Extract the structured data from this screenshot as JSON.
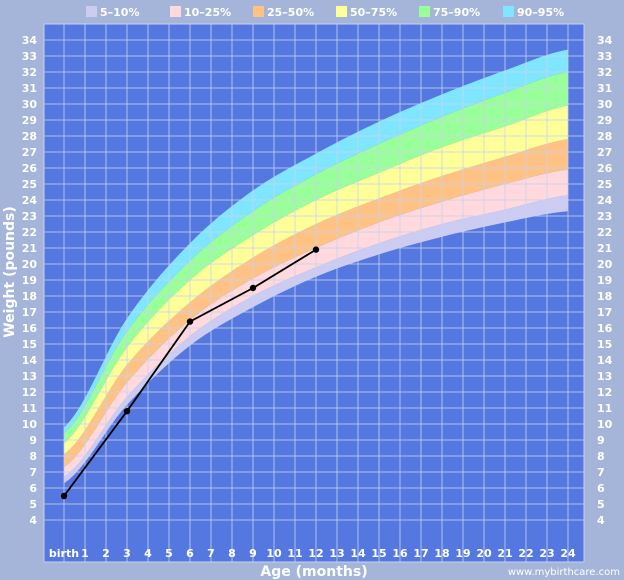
{
  "chart_data": {
    "type": "area",
    "xlabel": "Age (months)",
    "ylabel": "Weight (pounds)",
    "xlim": [
      0,
      24
    ],
    "ylim": [
      4,
      34
    ],
    "x_ticks": [
      {
        "value": 0,
        "label": "birth"
      },
      {
        "value": 1,
        "label": "1"
      },
      {
        "value": 2,
        "label": "2"
      },
      {
        "value": 3,
        "label": "3"
      },
      {
        "value": 4,
        "label": "4"
      },
      {
        "value": 5,
        "label": "5"
      },
      {
        "value": 6,
        "label": "6"
      },
      {
        "value": 7,
        "label": "7"
      },
      {
        "value": 8,
        "label": "8"
      },
      {
        "value": 9,
        "label": "9"
      },
      {
        "value": 10,
        "label": "10"
      },
      {
        "value": 11,
        "label": "11"
      },
      {
        "value": 12,
        "label": "12"
      },
      {
        "value": 13,
        "label": "13"
      },
      {
        "value": 14,
        "label": "14"
      },
      {
        "value": 15,
        "label": "15"
      },
      {
        "value": 16,
        "label": "16"
      },
      {
        "value": 17,
        "label": "17"
      },
      {
        "value": 18,
        "label": "18"
      },
      {
        "value": 19,
        "label": "19"
      },
      {
        "value": 20,
        "label": "20"
      },
      {
        "value": 21,
        "label": "21"
      },
      {
        "value": 22,
        "label": "22"
      },
      {
        "value": 23,
        "label": "23"
      },
      {
        "value": 24,
        "label": "24"
      }
    ],
    "y_ticks": [
      4,
      5,
      6,
      7,
      8,
      9,
      10,
      11,
      12,
      13,
      14,
      15,
      16,
      17,
      18,
      19,
      20,
      21,
      22,
      23,
      24,
      25,
      26,
      27,
      28,
      29,
      30,
      31,
      32,
      33,
      34
    ],
    "grid": true,
    "legend_position": "top",
    "bands_x": [
      0,
      3,
      6,
      9,
      12,
      15,
      18,
      21,
      24
    ],
    "percentile_curves": [
      {
        "p": 5,
        "values": [
          6.3,
          11.2,
          14.9,
          17.3,
          19.2,
          20.6,
          21.7,
          22.6,
          23.3
        ]
      },
      {
        "p": 10,
        "values": [
          6.7,
          11.7,
          15.5,
          18.0,
          19.8,
          21.3,
          22.5,
          23.4,
          24.3
        ]
      },
      {
        "p": 25,
        "values": [
          7.3,
          12.6,
          16.5,
          19.1,
          21.0,
          22.6,
          23.9,
          25.0,
          25.9
        ]
      },
      {
        "p": 50,
        "values": [
          8.1,
          13.7,
          17.6,
          20.4,
          22.5,
          24.1,
          25.5,
          26.7,
          27.8
        ]
      },
      {
        "p": 75,
        "values": [
          8.8,
          14.8,
          19.0,
          21.8,
          24.0,
          25.7,
          27.3,
          28.6,
          29.9
        ]
      },
      {
        "p": 90,
        "values": [
          9.4,
          15.8,
          20.2,
          23.3,
          25.6,
          27.5,
          29.2,
          30.7,
          32.0
        ]
      },
      {
        "p": 95,
        "values": [
          9.8,
          16.6,
          21.3,
          24.6,
          26.9,
          28.9,
          30.6,
          32.1,
          33.4
        ]
      }
    ],
    "bands": [
      {
        "name": "5–10%",
        "lower": 5,
        "upper": 10,
        "color": "#ccccf2"
      },
      {
        "name": "10–25%",
        "lower": 10,
        "upper": 25,
        "color": "#ffd9dd"
      },
      {
        "name": "25–50%",
        "lower": 25,
        "upper": 50,
        "color": "#ffc285"
      },
      {
        "name": "50–75%",
        "lower": 50,
        "upper": 75,
        "color": "#ffff99"
      },
      {
        "name": "75–90%",
        "lower": 75,
        "upper": 90,
        "color": "#99ff99"
      },
      {
        "name": "90–95%",
        "lower": 90,
        "upper": 95,
        "color": "#80e5ff"
      }
    ],
    "series": [
      {
        "x": [
          0,
          3,
          6,
          9,
          12
        ],
        "values": [
          5.5,
          10.8,
          16.4,
          18.5,
          20.9
        ],
        "color": "#000000"
      }
    ]
  },
  "credit": "www.mybirthcare.com",
  "colors": {
    "plot_background": "#5577e0",
    "page_background": "#a5b5d9",
    "grid": "#c8d2f0"
  }
}
